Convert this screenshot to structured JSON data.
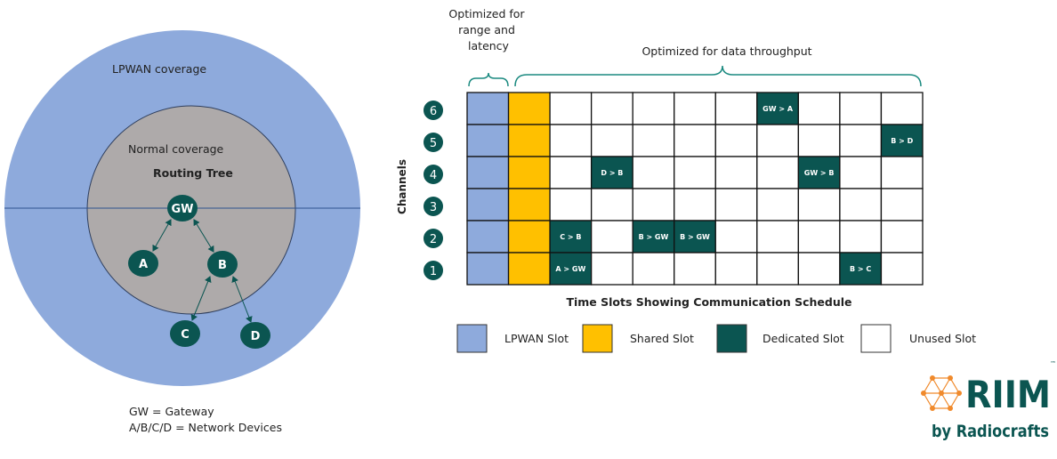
{
  "colors": {
    "lpwan": "#8eaadc",
    "shared": "#ffc000",
    "dedicated": "#0b5551",
    "unused": "#ffffff",
    "inner": "#aeaaaa",
    "logo_orange": "#f08a2c"
  },
  "coverage": {
    "lpwan_label": "LPWAN coverage",
    "normal_label": "Normal coverage",
    "tree_label": "Routing Tree",
    "nodes": [
      "GW",
      "A",
      "B",
      "C",
      "D"
    ]
  },
  "key": {
    "line1": "GW = Gateway",
    "line2": "A/B/C/D = Network Devices"
  },
  "schedule": {
    "top_left_label": [
      "Optimized for",
      "range and",
      "latency"
    ],
    "top_right_label": "Optimized for data throughput",
    "y_label": "Channels",
    "x_label": "Time Slots Showing Communication Schedule",
    "channels": [
      "6",
      "5",
      "4",
      "3",
      "2",
      "1"
    ],
    "slot_count": 11,
    "dedicated": [
      {
        "channel": "6",
        "slot": 7,
        "label": "GW > A"
      },
      {
        "channel": "5",
        "slot": 10,
        "label": "B > D"
      },
      {
        "channel": "4",
        "slot": 3,
        "label": "D > B"
      },
      {
        "channel": "4",
        "slot": 8,
        "label": "GW > B"
      },
      {
        "channel": "2",
        "slot": 2,
        "label": "C > B"
      },
      {
        "channel": "2",
        "slot": 4,
        "label": "B > GW"
      },
      {
        "channel": "2",
        "slot": 5,
        "label": "B > GW"
      },
      {
        "channel": "1",
        "slot": 2,
        "label": "A > GW"
      },
      {
        "channel": "1",
        "slot": 9,
        "label": "B > C"
      }
    ]
  },
  "legend": [
    {
      "label": "LPWAN Slot",
      "type": "lpwan"
    },
    {
      "label": "Shared Slot",
      "type": "shared"
    },
    {
      "label": "Dedicated Slot",
      "type": "dedicated"
    },
    {
      "label": "Unused Slot",
      "type": "unused"
    }
  ],
  "logo": {
    "main": "RIIM",
    "sub": "by Radiocrafts",
    "tm": "™"
  }
}
